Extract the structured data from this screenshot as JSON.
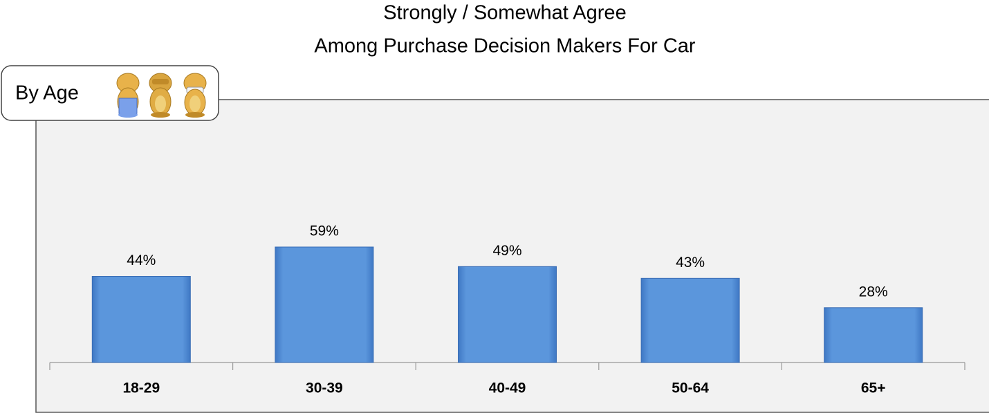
{
  "chart_data": {
    "type": "bar",
    "title": "Strongly / Somewhat Agree",
    "subtitle": "Among Purchase Decision Makers For Car",
    "annotation": "By Age",
    "categories": [
      "18-29",
      "30-39",
      "40-49",
      "50-64",
      "65+"
    ],
    "values": [
      44,
      59,
      49,
      43,
      28
    ],
    "value_labels": [
      "44%",
      "59%",
      "49%",
      "43%",
      "28%"
    ],
    "color": "#5b96dc"
  }
}
